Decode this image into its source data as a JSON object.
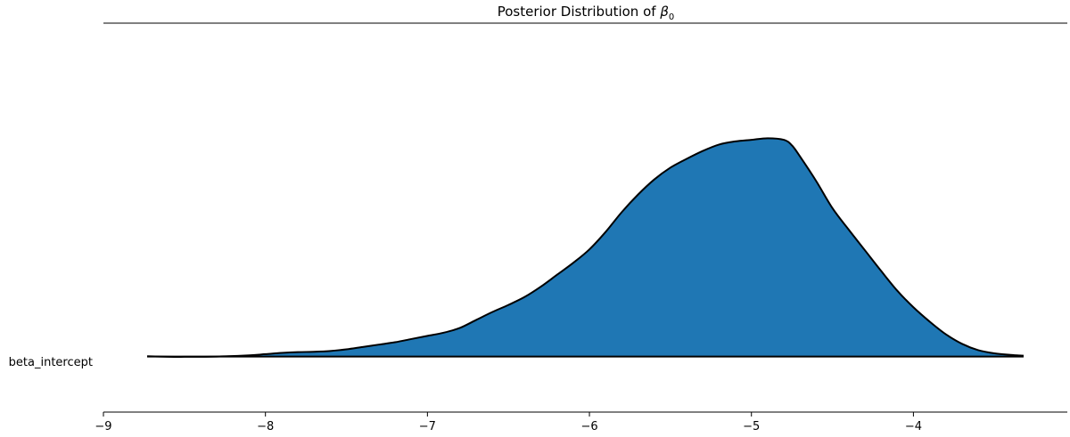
{
  "chart_data": {
    "type": "area",
    "title_main": "Posterior Distribution of ",
    "title_symbol": "β",
    "title_subscript": "0",
    "row_label": "beta_intercept",
    "xlim": [
      -9,
      -3.05
    ],
    "ylim": [
      -0.07,
      0.42
    ],
    "grid": false,
    "fill_color": "#1f77b4",
    "line_color": "#000000",
    "x_ticks": [
      {
        "value": -9,
        "label": "−9"
      },
      {
        "value": -8,
        "label": "−8"
      },
      {
        "value": -7,
        "label": "−7"
      },
      {
        "value": -6,
        "label": "−6"
      },
      {
        "value": -5,
        "label": "−5"
      },
      {
        "value": -4,
        "label": "−4"
      }
    ],
    "series": [
      {
        "x": [
          -8.73,
          -8.6,
          -8.5,
          -8.3,
          -8.1,
          -8.0,
          -7.9,
          -7.8,
          -7.7,
          -7.6,
          -7.5,
          -7.4,
          -7.3,
          -7.2,
          -7.1,
          -7.0,
          -6.9,
          -6.8,
          -6.7,
          -6.6,
          -6.5,
          -6.4,
          -6.3,
          -6.2,
          -6.1,
          -6.0,
          -5.9,
          -5.8,
          -5.7,
          -5.6,
          -5.5,
          -5.4,
          -5.3,
          -5.2,
          -5.1,
          -5.0,
          -4.9,
          -4.8,
          -4.75,
          -4.7,
          -4.6,
          -4.5,
          -4.4,
          -4.3,
          -4.2,
          -4.1,
          -4.0,
          -3.9,
          -3.8,
          -3.7,
          -3.6,
          -3.5,
          -3.4,
          -3.32
        ],
        "y": [
          0.0003,
          -0.0003,
          -0.0004,
          0.0,
          0.0015,
          0.003,
          0.0045,
          0.0055,
          0.006,
          0.007,
          0.009,
          0.012,
          0.015,
          0.018,
          0.022,
          0.026,
          0.03,
          0.036,
          0.046,
          0.056,
          0.065,
          0.075,
          0.088,
          0.103,
          0.118,
          0.135,
          0.157,
          0.182,
          0.204,
          0.223,
          0.238,
          0.249,
          0.259,
          0.267,
          0.271,
          0.273,
          0.275,
          0.273,
          0.266,
          0.252,
          0.221,
          0.187,
          0.16,
          0.134,
          0.108,
          0.083,
          0.062,
          0.044,
          0.028,
          0.016,
          0.008,
          0.004,
          0.002,
          0.001
        ]
      }
    ]
  }
}
